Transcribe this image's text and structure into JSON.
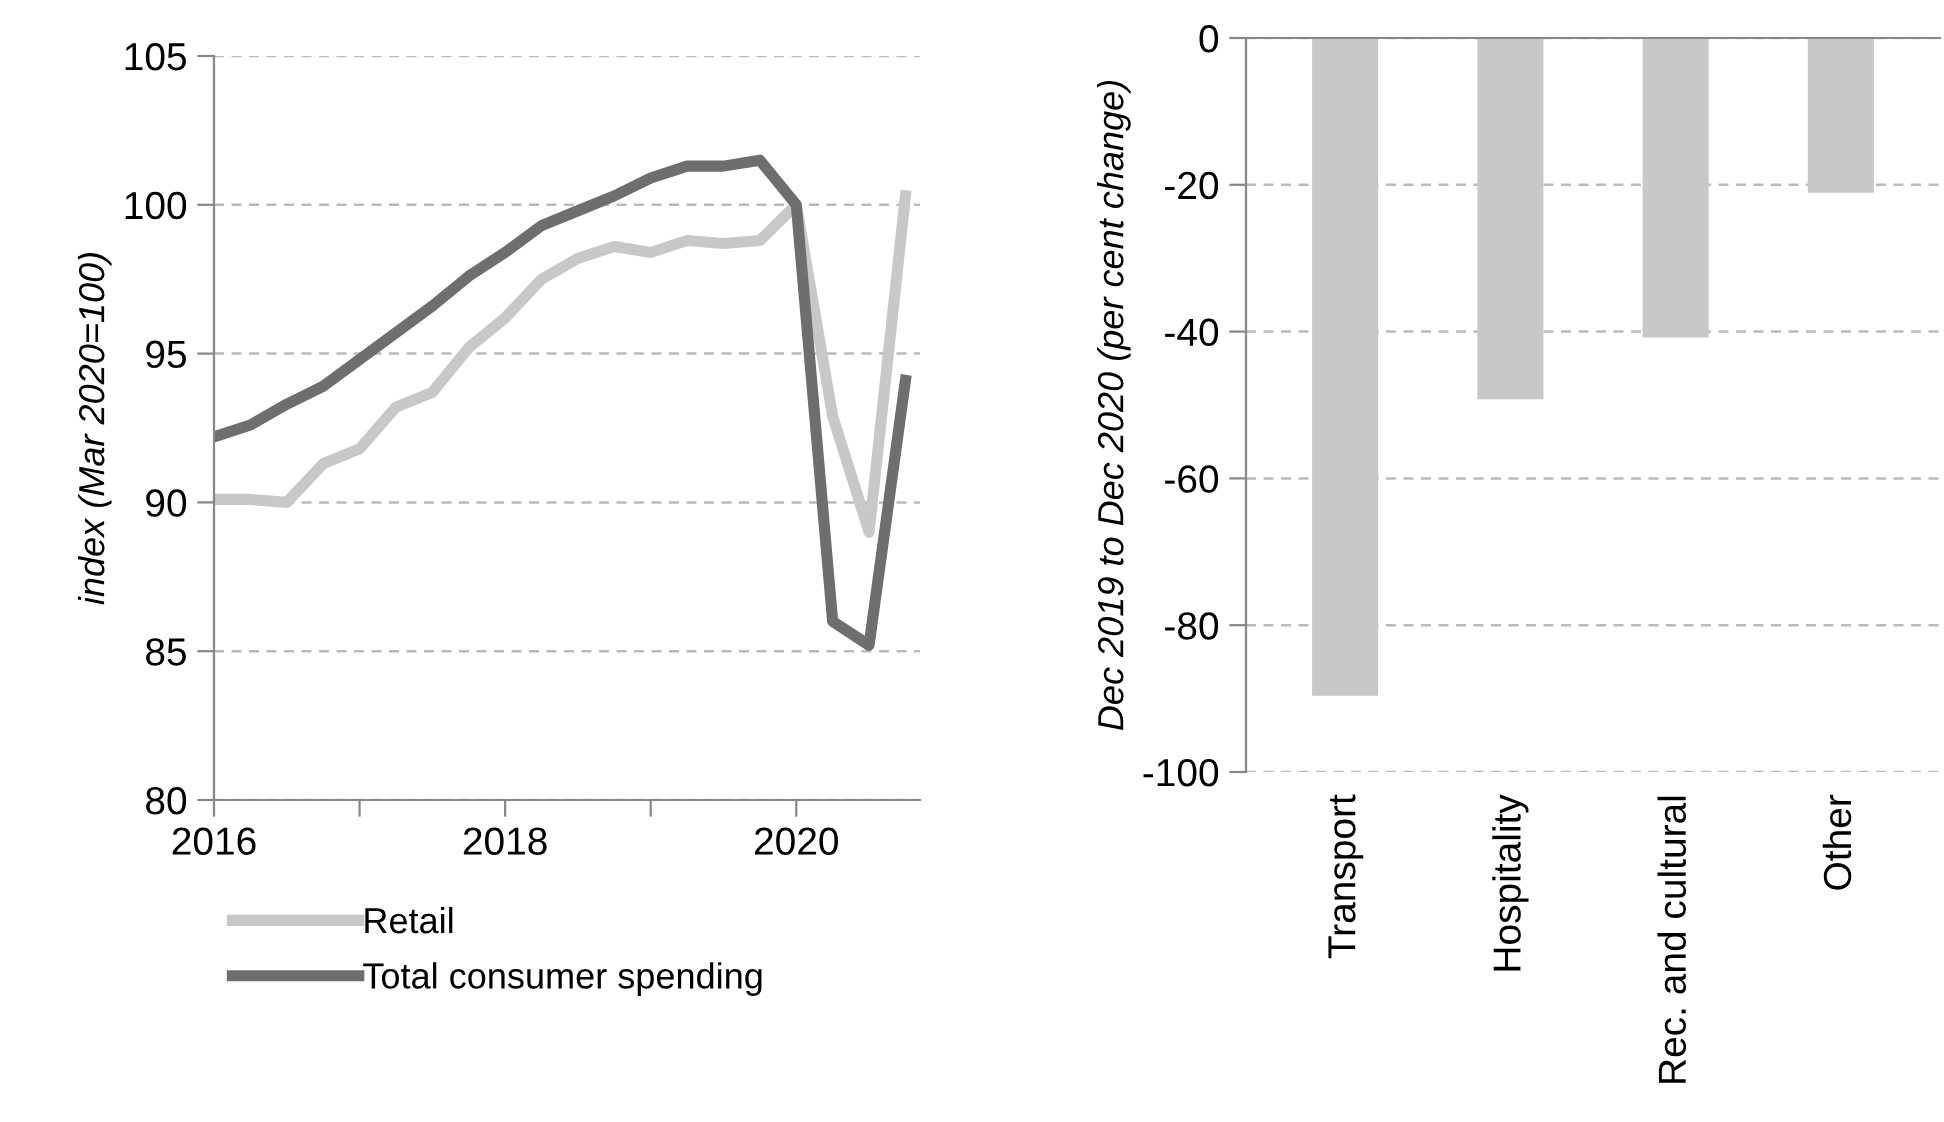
{
  "chart_data": [
    {
      "type": "line",
      "ylabel": "index (Mar 2020=100)",
      "x": [
        2016,
        2016.25,
        2016.5,
        2016.75,
        2017,
        2017.25,
        2017.5,
        2017.75,
        2018,
        2018.25,
        2018.5,
        2018.75,
        2019,
        2019.25,
        2019.5,
        2019.75,
        2020,
        2020.25,
        2020.5,
        2020.75
      ],
      "series": [
        {
          "name": "Retail",
          "color": "#c8c8c8",
          "values": [
            90.1,
            90.1,
            90.0,
            91.3,
            91.8,
            93.2,
            93.7,
            95.2,
            96.2,
            97.5,
            98.2,
            98.6,
            98.4,
            98.8,
            98.7,
            98.8,
            100.0,
            92.9,
            89.0,
            100.3
          ]
        },
        {
          "name": "Total consumer spending",
          "color": "#6e6e6e",
          "values": [
            92.2,
            92.6,
            93.3,
            93.9,
            94.8,
            95.7,
            96.6,
            97.6,
            98.4,
            99.3,
            99.8,
            100.3,
            100.9,
            101.3,
            101.3,
            101.5,
            100.0,
            86.0,
            85.2,
            94.1
          ]
        }
      ],
      "xlim": [
        2016,
        2020.85
      ],
      "xticks": [
        2016,
        {
          "value": 2017,
          "label": null
        },
        2018,
        {
          "value": 2019,
          "label": null
        },
        2020
      ],
      "ylim": [
        80,
        105
      ],
      "yticks": [
        80,
        85,
        90,
        95,
        100,
        105
      ],
      "grid": "y",
      "legend": "bottom",
      "marker": "none",
      "line_style": "solid"
    },
    {
      "type": "bar",
      "ylabel": "Dec 2019 to Dec 2020 (per cent change)",
      "categories": [
        "Transport",
        "Hospitality",
        "Rec. and cultural",
        "Other"
      ],
      "values": [
        -89.6,
        -49.2,
        -40.8,
        -21.1
      ],
      "color": "#c8c8c8",
      "ylim": [
        -100,
        0
      ],
      "yticks": [
        -100,
        -80,
        -60,
        -40,
        -20,
        0
      ],
      "grid": "y"
    }
  ]
}
